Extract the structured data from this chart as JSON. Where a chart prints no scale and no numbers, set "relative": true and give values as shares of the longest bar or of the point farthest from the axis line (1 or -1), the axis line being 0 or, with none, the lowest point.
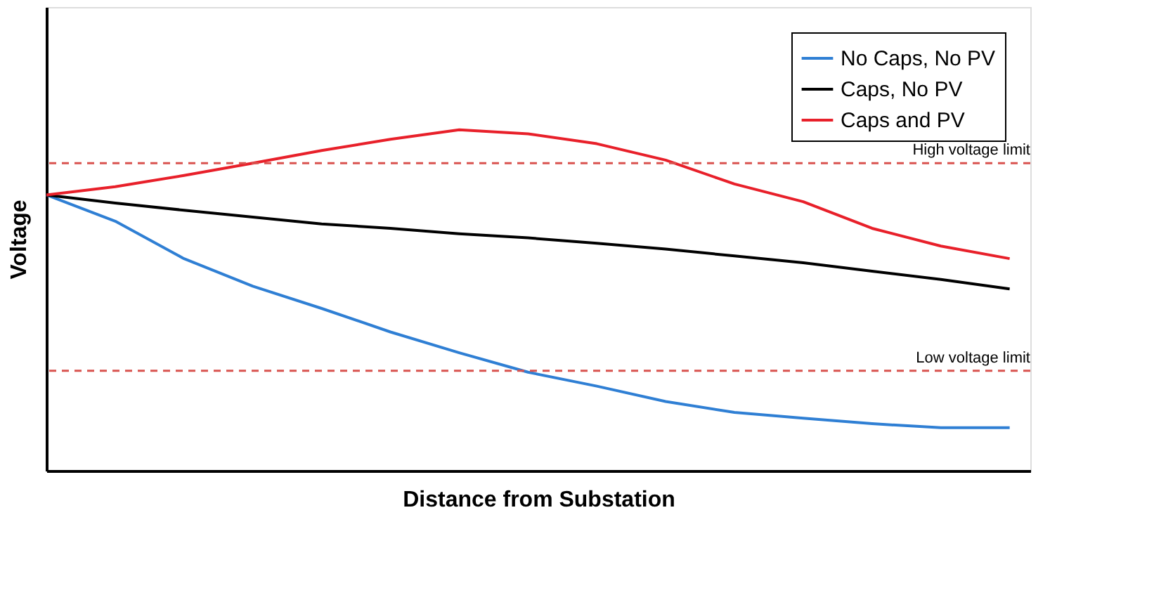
{
  "chart_data": {
    "type": "line",
    "relative": true,
    "xlabel": "Distance from Substation",
    "ylabel": "Voltage",
    "tick_labels": false,
    "legend": "top right",
    "marker": "none",
    "line_style": "solid",
    "categories": [
      null,
      null,
      null,
      null,
      null,
      null,
      null,
      null,
      null,
      null,
      null,
      null,
      null,
      null,
      null
    ],
    "series": [
      {
        "name": "No Caps, No PV",
        "color": "#2f7fd4",
        "values": [
          0.809,
          0.732,
          0.622,
          0.541,
          0.476,
          0.407,
          0.346,
          0.289,
          0.248,
          0.203,
          0.171,
          0.154,
          0.138,
          0.126,
          0.126
        ]
      },
      {
        "name": "Caps, No PV",
        "color": "#000000",
        "values": [
          0.809,
          0.785,
          0.764,
          0.744,
          0.724,
          0.711,
          0.695,
          0.683,
          0.667,
          0.65,
          0.63,
          0.61,
          0.585,
          0.561,
          0.533
        ]
      },
      {
        "name": "Caps and PV",
        "color": "#e8202a",
        "values": [
          0.809,
          0.833,
          0.866,
          0.902,
          0.939,
          0.972,
          1.0,
          0.988,
          0.959,
          0.911,
          0.841,
          0.789,
          0.711,
          0.659,
          0.622
        ]
      }
    ],
    "ref_lines": [
      {
        "axis": "y",
        "value": 0.902,
        "label": "High voltage limit",
        "color": "#d9534f",
        "line_style": "dashed"
      },
      {
        "axis": "y",
        "value": 0.293,
        "label": "Low voltage limit",
        "color": "#d9534f",
        "line_style": "dashed"
      }
    ]
  }
}
